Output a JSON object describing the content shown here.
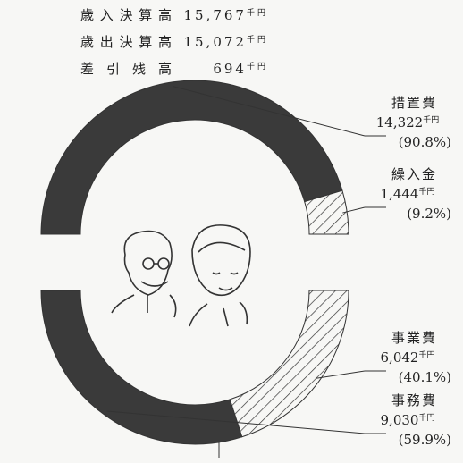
{
  "unit": "千円",
  "summary": [
    {
      "label": "歳入決算高",
      "value": "15,767"
    },
    {
      "label": "歳出決算高",
      "value": "15,072"
    },
    {
      "label": "差引残高",
      "value": "694"
    }
  ],
  "chart_data": [
    {
      "type": "pie",
      "categories": [
        "措置費",
        "繰入金"
      ],
      "values": [
        14322,
        1444
      ],
      "value_labels": [
        "14,322",
        "1,444"
      ],
      "percents": [
        90.8,
        9.2
      ],
      "percent_labels": [
        "(90.8%)",
        "(9.2%)"
      ],
      "colors": [
        "#3a3a3a",
        "hatched"
      ]
    },
    {
      "type": "pie",
      "categories": [
        "事業費",
        "事務費"
      ],
      "values": [
        6042,
        9030
      ],
      "value_labels": [
        "6,042",
        "9,030"
      ],
      "percents": [
        40.1,
        59.9
      ],
      "percent_labels": [
        "(40.1%)",
        "(59.9%)"
      ],
      "colors": [
        "hatched",
        "#3a3a3a"
      ]
    }
  ]
}
